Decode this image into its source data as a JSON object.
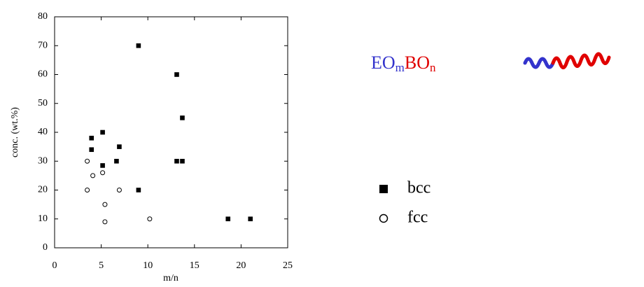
{
  "chart_data": {
    "type": "scatter",
    "xlabel": "m/n",
    "ylabel": "conc. (wt.%)",
    "xlim": [
      0,
      25
    ],
    "ylim": [
      0,
      80
    ],
    "xticks": [
      0,
      5,
      10,
      15,
      20,
      25
    ],
    "yticks": [
      0,
      10,
      20,
      30,
      40,
      50,
      60,
      70,
      80
    ],
    "grid": false,
    "legend": "right",
    "annotation": [
      "EO",
      "m",
      "BO",
      "n"
    ],
    "series": [
      {
        "name": "bcc",
        "marker": "square",
        "color": "#000000",
        "x": [
          3.96,
          3.96,
          5.15,
          5.15,
          6.64,
          6.94,
          9.0,
          9.0,
          13.1,
          13.1,
          13.7,
          13.7,
          18.6,
          21.0
        ],
        "values": [
          38,
          34,
          40,
          28.5,
          30,
          35,
          70,
          20,
          60,
          30,
          30,
          45,
          10,
          10
        ]
      },
      {
        "name": "fcc",
        "marker": "circle",
        "color": "#000000",
        "x": [
          3.5,
          3.5,
          4.1,
          5.15,
          5.4,
          5.4,
          6.94,
          10.2
        ],
        "values": [
          30,
          20,
          25,
          26,
          15,
          9,
          20,
          10
        ]
      }
    ]
  }
}
